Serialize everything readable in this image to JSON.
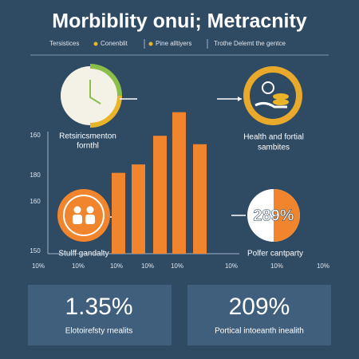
{
  "header": {
    "title": "Morbiblity onui; Metracnity",
    "legend": [
      "Tersistices",
      "Conenblit",
      "Pine alltiyers",
      "Trothe Delemt the gentce"
    ]
  },
  "callouts": [
    {
      "label_lines": [
        "Retsiricsmenton",
        "fornthl"
      ]
    },
    {
      "label_lines": [
        "Health and fortial",
        "sambites"
      ]
    },
    {
      "label_lines": [
        "Stulff gandalty"
      ]
    },
    {
      "label_lines": [
        "Polfer cantparty"
      ],
      "badge": "289%"
    }
  ],
  "chart_data": {
    "type": "bar",
    "color": "#f0852d",
    "values": [
      96,
      106,
      140,
      168,
      130
    ],
    "ylim": [
      0,
      180
    ],
    "y_axis_labels": [
      "160",
      "180",
      "160",
      "150"
    ],
    "x_axis_labels": [
      "10%",
      "10%",
      "10%",
      "10%",
      "10%",
      "10%",
      "10%",
      "10%"
    ]
  },
  "cards": [
    {
      "stat": "1.35%",
      "caption": "Elotoirefsty rnealits"
    },
    {
      "stat": "209%",
      "caption": "Portical intoeanth inealith"
    }
  ]
}
